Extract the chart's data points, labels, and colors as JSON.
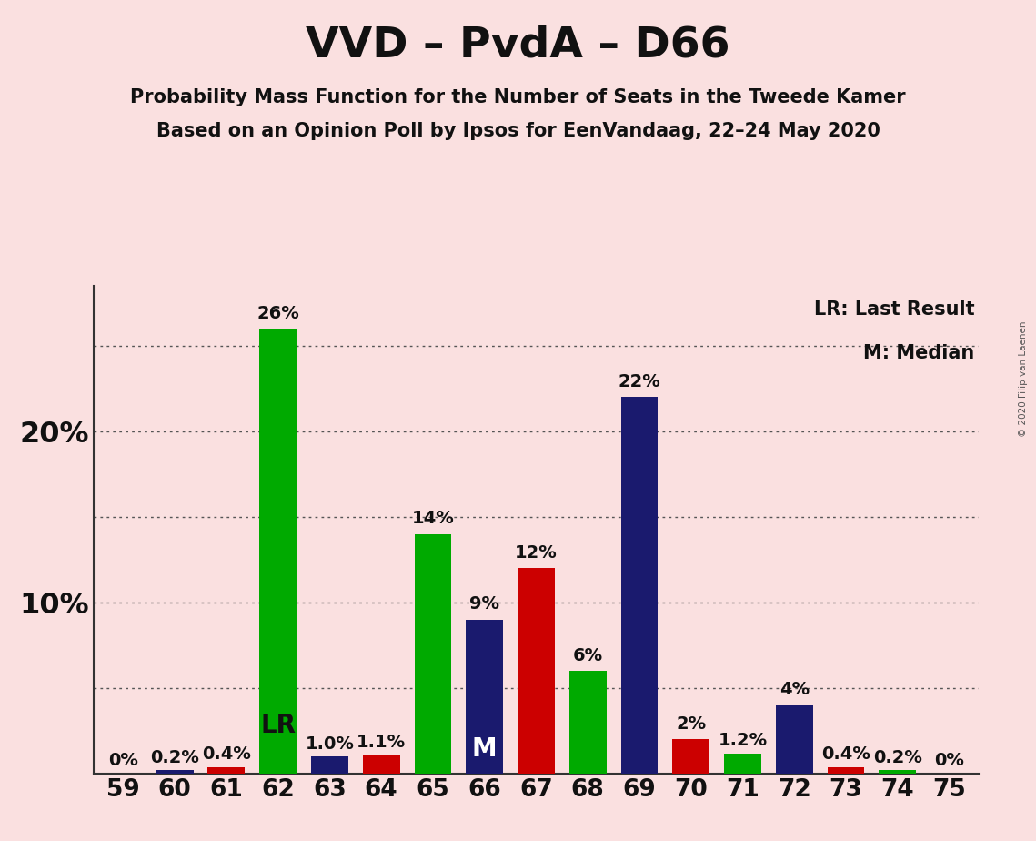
{
  "title": "VVD – PvdA – D66",
  "subtitle1": "Probability Mass Function for the Number of Seats in the Tweede Kamer",
  "subtitle2": "Based on an Opinion Poll by Ipsos for EenVandaag, 22–24 May 2020",
  "copyright": "© 2020 Filip van Laenen",
  "legend_lr": "LR: Last Result",
  "legend_m": "M: Median",
  "seats": [
    59,
    60,
    61,
    62,
    63,
    64,
    65,
    66,
    67,
    68,
    69,
    70,
    71,
    72,
    73,
    74,
    75
  ],
  "values": [
    0.0,
    0.2,
    0.4,
    26.0,
    1.0,
    1.1,
    14.0,
    9.0,
    12.0,
    6.0,
    22.0,
    2.0,
    1.2,
    4.0,
    0.4,
    0.2,
    0.0
  ],
  "colors": [
    "#00AA00",
    "#1A1A6E",
    "#CC0000",
    "#00AA00",
    "#1A1A6E",
    "#CC0000",
    "#00AA00",
    "#1A1A6E",
    "#CC0000",
    "#00AA00",
    "#1A1A6E",
    "#CC0000",
    "#00AA00",
    "#1A1A6E",
    "#CC0000",
    "#00AA00",
    "#1A1A6E"
  ],
  "labels": [
    "0%",
    "0.2%",
    "0.4%",
    "26%",
    "1.0%",
    "1.1%",
    "14%",
    "9%",
    "12%",
    "6%",
    "22%",
    "2%",
    "1.2%",
    "4%",
    "0.4%",
    "0.2%",
    "0%"
  ],
  "lr_seat": 62,
  "median_seat": 66,
  "background_color": "#FAE0E0",
  "bar_width": 0.72,
  "ylim": [
    0,
    28.5
  ],
  "grid_y_values": [
    5,
    10,
    15,
    20,
    25
  ],
  "title_fontsize": 34,
  "subtitle_fontsize": 15,
  "axis_fontsize": 19,
  "annotation_fontsize": 14,
  "marker_fontsize": 20,
  "ytick_positions": [
    10,
    20
  ],
  "ytick_labels": [
    "10%",
    "20%"
  ]
}
